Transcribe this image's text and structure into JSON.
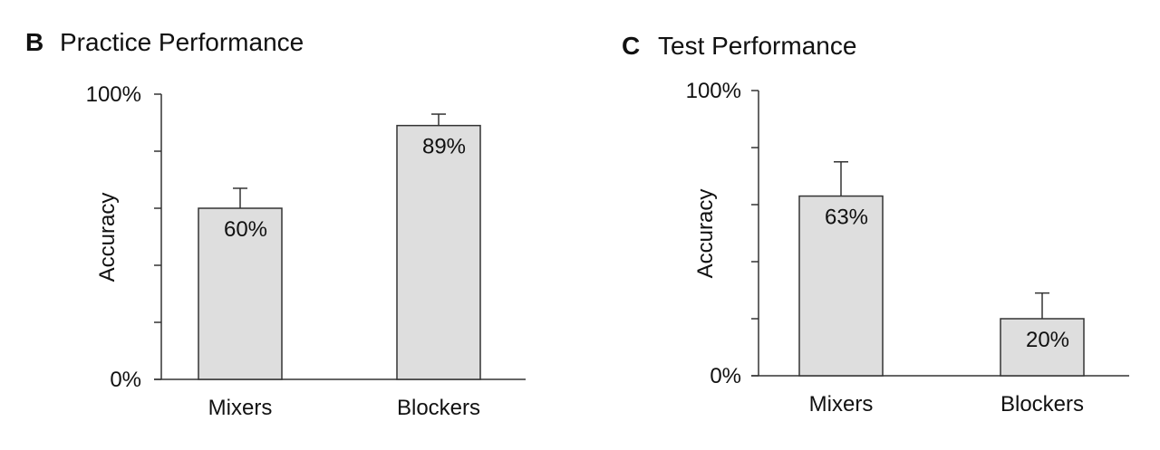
{
  "chart_data": [
    {
      "type": "bar",
      "panel_letter": "B",
      "title": "Practice Performance",
      "ylabel": "Accuracy",
      "xlabel": "",
      "categories": [
        "Mixers",
        "Blockers"
      ],
      "values": [
        60,
        89
      ],
      "error_upper": [
        67,
        93
      ],
      "data_labels": [
        "60%",
        "89%"
      ],
      "ylim": [
        0,
        100
      ],
      "yticks": [
        0,
        20,
        40,
        60,
        80,
        100
      ],
      "ytick_labels": [
        "0%",
        "",
        "",
        "",
        "",
        "100%"
      ],
      "grid": false,
      "colors": {
        "bar": "#dedede",
        "edge": "#333333"
      }
    },
    {
      "type": "bar",
      "panel_letter": "C",
      "title": "Test Performance",
      "ylabel": "Accuracy",
      "xlabel": "",
      "categories": [
        "Mixers",
        "Blockers"
      ],
      "values": [
        63,
        20
      ],
      "error_upper": [
        75,
        29
      ],
      "data_labels": [
        "63%",
        "20%"
      ],
      "ylim": [
        0,
        100
      ],
      "yticks": [
        0,
        20,
        40,
        60,
        80,
        100
      ],
      "ytick_labels": [
        "0%",
        "",
        "",
        "",
        "",
        "100%"
      ],
      "grid": false,
      "colors": {
        "bar": "#dedede",
        "edge": "#333333"
      }
    }
  ]
}
